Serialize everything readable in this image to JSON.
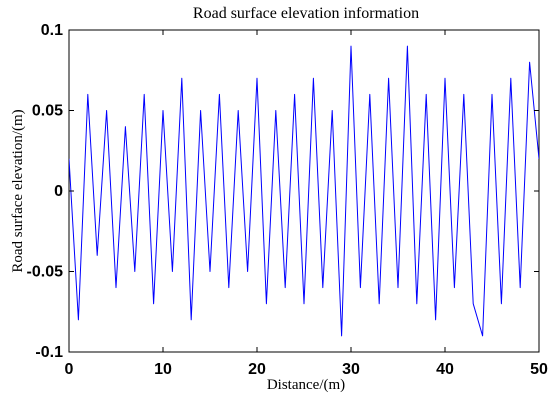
{
  "chart_data": {
    "type": "line",
    "title": "Road surface elevation information",
    "xlabel": "Distance/(m)",
    "ylabel": "Road surface elevation/(m)",
    "xlim": [
      0,
      50
    ],
    "ylim": [
      -0.1,
      0.1
    ],
    "x_ticks": [
      0,
      10,
      20,
      30,
      40,
      50
    ],
    "y_ticks": [
      -0.1,
      -0.05,
      0,
      0.05,
      0.1
    ],
    "x_tick_labels": [
      "0",
      "10",
      "20",
      "30",
      "40",
      "50"
    ],
    "y_tick_labels": [
      "-0.1",
      "-0.05",
      "0",
      "0.05",
      "0.1"
    ],
    "grid": false,
    "series": [
      {
        "color": "#0000ff",
        "x": [
          0,
          1,
          2,
          3,
          4,
          5,
          6,
          7,
          8,
          9,
          10,
          11,
          12,
          13,
          14,
          15,
          16,
          17,
          18,
          19,
          20,
          21,
          22,
          23,
          24,
          25,
          26,
          27,
          28,
          29,
          30,
          31,
          32,
          33,
          34,
          35,
          36,
          37,
          38,
          39,
          40,
          41,
          42,
          43,
          44,
          45,
          46,
          47,
          48,
          49,
          50
        ],
        "y": [
          0.02,
          -0.08,
          0.06,
          -0.04,
          0.05,
          -0.06,
          0.04,
          -0.05,
          0.06,
          -0.07,
          0.05,
          -0.05,
          0.07,
          -0.08,
          0.05,
          -0.05,
          0.06,
          -0.06,
          0.05,
          -0.05,
          0.07,
          -0.07,
          0.05,
          -0.06,
          0.06,
          -0.07,
          0.07,
          -0.06,
          0.05,
          -0.09,
          0.09,
          -0.06,
          0.06,
          -0.07,
          0.07,
          -0.06,
          0.09,
          -0.07,
          0.06,
          -0.08,
          0.07,
          -0.06,
          0.06,
          -0.07,
          -0.09,
          0.06,
          -0.07,
          0.07,
          -0.06,
          0.08,
          0.02
        ]
      }
    ]
  }
}
